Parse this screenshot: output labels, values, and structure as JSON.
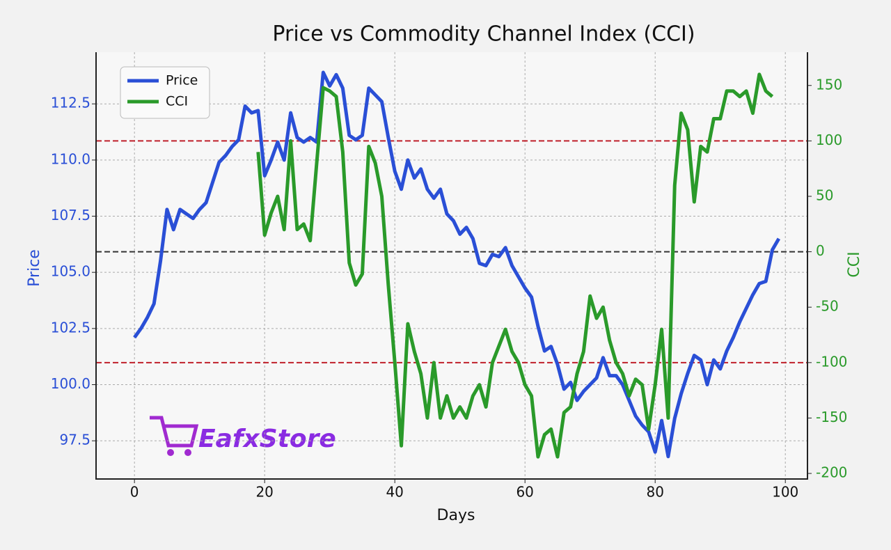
{
  "chart_data": {
    "type": "line",
    "title": "Price vs Commodity Channel Index (CCI)",
    "xlabel": "Days",
    "ylabel": "Price",
    "y2label": "CCI",
    "watermark": "EafxStore",
    "x": [
      0,
      1,
      2,
      3,
      4,
      5,
      6,
      7,
      8,
      9,
      10,
      11,
      12,
      13,
      14,
      15,
      16,
      17,
      18,
      19,
      20,
      21,
      22,
      23,
      24,
      25,
      26,
      27,
      28,
      29,
      30,
      31,
      32,
      33,
      34,
      35,
      36,
      37,
      38,
      39,
      40,
      41,
      42,
      43,
      44,
      45,
      46,
      47,
      48,
      49,
      50,
      51,
      52,
      53,
      54,
      55,
      56,
      57,
      58,
      59,
      60,
      61,
      62,
      63,
      64,
      65,
      66,
      67,
      68,
      69,
      70,
      71,
      72,
      73,
      74,
      75,
      76,
      77,
      78,
      79,
      80,
      81,
      82,
      83,
      84,
      85,
      86,
      87,
      88,
      89,
      90,
      91,
      92,
      93,
      94,
      95,
      96,
      97,
      98,
      99
    ],
    "series": [
      {
        "name": "Price",
        "color": "#2a4fd6",
        "axis": "y",
        "values": [
          102.1,
          102.5,
          103.0,
          103.6,
          105.5,
          107.8,
          106.9,
          107.8,
          107.6,
          107.4,
          107.8,
          108.1,
          109.0,
          109.9,
          110.2,
          110.6,
          110.9,
          112.4,
          112.1,
          112.2,
          109.3,
          110.0,
          110.8,
          110.0,
          112.1,
          111.0,
          110.8,
          111.0,
          110.8,
          113.9,
          113.3,
          113.8,
          113.2,
          111.1,
          110.9,
          111.1,
          113.2,
          112.9,
          112.6,
          111.0,
          109.5,
          108.7,
          110.0,
          109.2,
          109.6,
          108.7,
          108.3,
          108.7,
          107.6,
          107.3,
          106.7,
          107.0,
          106.5,
          105.4,
          105.3,
          105.8,
          105.7,
          106.1,
          105.3,
          104.8,
          104.3,
          103.9,
          102.6,
          101.5,
          101.7,
          100.9,
          99.8,
          100.1,
          99.3,
          99.7,
          100.0,
          100.3,
          101.2,
          100.4,
          100.4,
          100.0,
          99.3,
          98.6,
          98.2,
          97.9,
          97.0,
          98.4,
          96.8,
          98.5,
          99.6,
          100.5,
          101.3,
          101.1,
          100.0,
          101.1,
          100.7,
          101.5,
          102.1,
          102.8,
          103.4,
          104.0,
          104.5,
          104.6,
          106.0,
          106.5
        ]
      },
      {
        "name": "CCI",
        "color": "#2a9a2a",
        "axis": "y2",
        "values": [
          null,
          null,
          null,
          null,
          null,
          null,
          null,
          null,
          null,
          null,
          null,
          null,
          null,
          null,
          null,
          null,
          null,
          null,
          null,
          90,
          15,
          35,
          50,
          20,
          100,
          20,
          25,
          10,
          80,
          148,
          145,
          140,
          90,
          -10,
          -30,
          -20,
          95,
          80,
          50,
          -30,
          -100,
          -175,
          -65,
          -90,
          -110,
          -150,
          -100,
          -150,
          -130,
          -150,
          -140,
          -150,
          -130,
          -120,
          -140,
          -100,
          -85,
          -70,
          -90,
          -100,
          -120,
          -130,
          -185,
          -165,
          -160,
          -185,
          -145,
          -140,
          -110,
          -90,
          -40,
          -60,
          -50,
          -80,
          -100,
          -110,
          -130,
          -115,
          -120,
          -160,
          -120,
          -70,
          -150,
          60,
          125,
          110,
          45,
          95,
          90,
          120,
          120,
          145,
          145,
          140,
          145,
          125,
          160,
          145,
          140,
          null
        ]
      }
    ],
    "xlim": [
      -5.9,
      103.4
    ],
    "xticks": [
      0,
      20,
      40,
      60,
      80,
      100
    ],
    "ylim": [
      95.8,
      114.8
    ],
    "yticks": [
      97.5,
      {
        "value": 100,
        "label": "100.0"
      },
      102.5,
      {
        "value": 105,
        "label": "105.0"
      },
      107.5,
      {
        "value": 110,
        "label": "110.0"
      },
      112.5
    ],
    "y2lim": [
      -205,
      180
    ],
    "y2ticks": [
      -200,
      -150,
      -100,
      -50,
      0,
      50,
      100,
      150
    ],
    "hlines": [
      {
        "axis": "y2",
        "value": 100,
        "color": "#c0202a"
      },
      {
        "axis": "y2",
        "value": 0,
        "color": "#333333"
      },
      {
        "axis": "y2",
        "value": -100,
        "color": "#c0202a"
      }
    ],
    "grid": true,
    "legend": "upper left"
  }
}
